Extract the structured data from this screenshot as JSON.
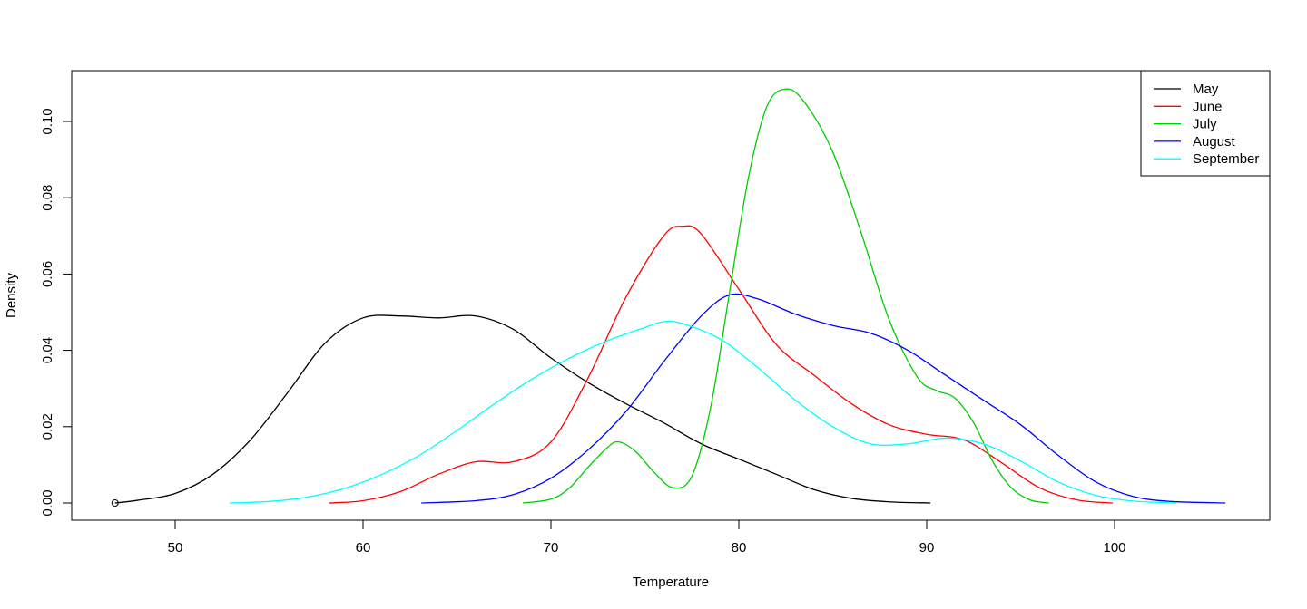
{
  "chart_data": {
    "type": "line",
    "title": "",
    "xlabel": "Temperature",
    "ylabel": "Density",
    "xlim": [
      44.5,
      108.3
    ],
    "ylim": [
      -0.004,
      0.113
    ],
    "x_ticks": [
      50,
      60,
      70,
      80,
      90,
      100
    ],
    "x_tick_labels": [
      "50",
      "60",
      "70",
      "80",
      "90",
      "100"
    ],
    "y_ticks": [
      0.0,
      0.02,
      0.04,
      0.06,
      0.08,
      0.1
    ],
    "y_tick_labels": [
      "0.00",
      "0.02",
      "0.04",
      "0.06",
      "0.08",
      "0.10"
    ],
    "grid": false,
    "legend_position": "topright",
    "annotations": [
      {
        "type": "open-circle-point",
        "x": 46.8,
        "y": 0.0
      }
    ],
    "series": [
      {
        "name": "May",
        "color": "#000000",
        "x": [
          46.8,
          48,
          50,
          52,
          54,
          56,
          58,
          60,
          62,
          64,
          66,
          68,
          70,
          72,
          74,
          76,
          78,
          80,
          82,
          84,
          86,
          88,
          90.2
        ],
        "y": [
          0.0,
          0.0007,
          0.0025,
          0.0075,
          0.0165,
          0.029,
          0.042,
          0.0485,
          0.049,
          0.0485,
          0.049,
          0.0455,
          0.038,
          0.0315,
          0.026,
          0.021,
          0.0155,
          0.0115,
          0.0075,
          0.0035,
          0.0012,
          0.0003,
          0.0
        ]
      },
      {
        "name": "June",
        "color": "#ff0000",
        "x": [
          58.2,
          60,
          62,
          64,
          66,
          68,
          70,
          72,
          74,
          76,
          77,
          78,
          80,
          82,
          84,
          86,
          88,
          90,
          92,
          94,
          96,
          98,
          99.9
        ],
        "y": [
          0.0,
          0.0006,
          0.003,
          0.0075,
          0.0108,
          0.0108,
          0.016,
          0.033,
          0.054,
          0.07,
          0.0725,
          0.0705,
          0.056,
          0.0415,
          0.0335,
          0.026,
          0.0205,
          0.018,
          0.0165,
          0.0105,
          0.004,
          0.0008,
          0.0
        ]
      },
      {
        "name": "July",
        "color": "#00cd00",
        "x": [
          68.5,
          70,
          71,
          72,
          73,
          73.6,
          74.5,
          75.5,
          76.5,
          77.5,
          78.5,
          79.5,
          80.5,
          81.5,
          82.5,
          83.5,
          85,
          86.5,
          88,
          89.5,
          90.5,
          91.5,
          92.5,
          93.5,
          94.5,
          95.5,
          96.5
        ],
        "y": [
          0.0,
          0.001,
          0.004,
          0.0095,
          0.0145,
          0.016,
          0.0135,
          0.008,
          0.004,
          0.007,
          0.025,
          0.055,
          0.085,
          0.104,
          0.1085,
          0.105,
          0.092,
          0.071,
          0.048,
          0.033,
          0.0295,
          0.0275,
          0.021,
          0.011,
          0.004,
          0.0008,
          0.0
        ]
      },
      {
        "name": "August",
        "color": "#0000ff",
        "x": [
          63.1,
          66,
          68,
          70,
          72,
          74,
          76,
          78,
          79.5,
          81,
          83,
          85,
          87,
          89,
          91,
          93,
          95,
          97,
          99,
          101,
          103,
          105.9
        ],
        "y": [
          0.0,
          0.0006,
          0.0022,
          0.0065,
          0.014,
          0.024,
          0.037,
          0.049,
          0.0545,
          0.0535,
          0.0495,
          0.0465,
          0.0445,
          0.04,
          0.0335,
          0.027,
          0.0205,
          0.0125,
          0.0055,
          0.0017,
          0.0004,
          0.0
        ]
      },
      {
        "name": "September",
        "color": "#00ffff",
        "x": [
          52.9,
          55,
          57,
          59,
          61,
          63,
          65,
          67,
          69,
          71,
          73,
          75,
          76,
          77,
          79,
          81,
          83,
          85,
          87,
          89,
          91,
          93,
          95,
          97,
          99,
          101,
          103.3
        ],
        "y": [
          0.0,
          0.0004,
          0.0015,
          0.0038,
          0.0075,
          0.0125,
          0.019,
          0.026,
          0.0325,
          0.038,
          0.0425,
          0.046,
          0.0475,
          0.047,
          0.043,
          0.0355,
          0.027,
          0.02,
          0.0155,
          0.0155,
          0.017,
          0.0155,
          0.011,
          0.0055,
          0.002,
          0.0005,
          0.0
        ]
      }
    ]
  },
  "legend": {
    "items": [
      {
        "label": "May",
        "color": "#000000"
      },
      {
        "label": "June",
        "color": "#ff0000"
      },
      {
        "label": "July",
        "color": "#00cd00"
      },
      {
        "label": "August",
        "color": "#0000ff"
      },
      {
        "label": "September",
        "color": "#00ffff"
      }
    ]
  },
  "axes": {
    "x_title": "Temperature",
    "y_title": "Density"
  }
}
